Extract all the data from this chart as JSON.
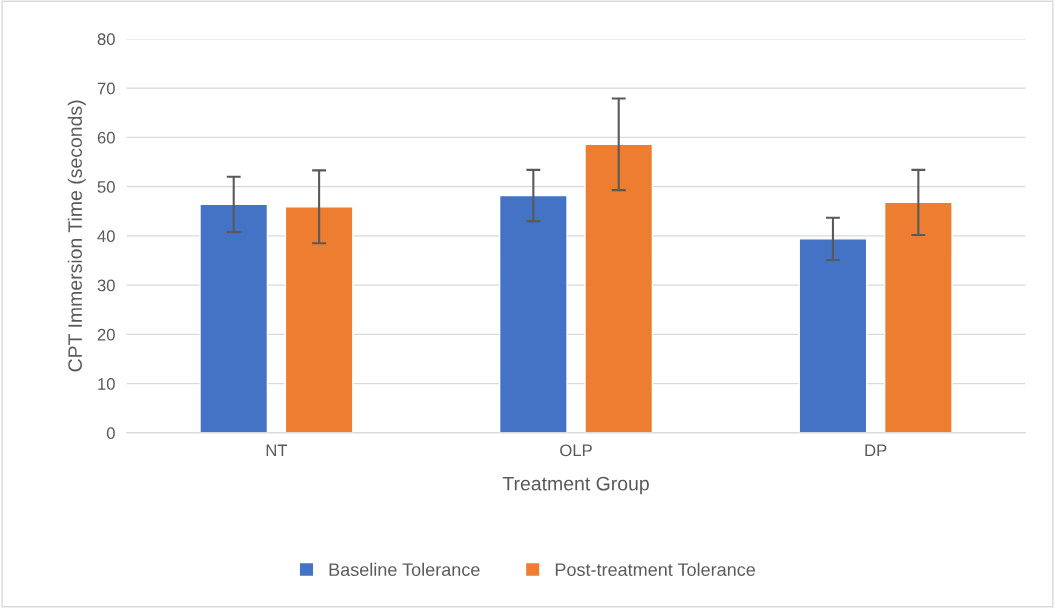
{
  "chart_data": {
    "type": "bar",
    "xlabel": "Treatment Group",
    "ylabel": "CPT Immersion Time (seconds)",
    "categories": [
      "NT",
      "OLP",
      "DP"
    ],
    "series": [
      {
        "name": "Baseline Tolerance",
        "color": "#4472c4",
        "values": [
          46.4,
          48.2,
          39.4
        ],
        "errors": [
          5.6,
          5.2,
          4.3
        ]
      },
      {
        "name": "Post-treatment Tolerance",
        "color": "#ed7d31",
        "values": [
          45.9,
          58.6,
          46.8
        ],
        "errors": [
          7.4,
          9.3,
          6.6
        ]
      }
    ],
    "ylim": [
      0,
      80
    ],
    "yticks": [
      0,
      10,
      20,
      30,
      40,
      50,
      60,
      70,
      80
    ],
    "grid": "y",
    "legend": "bottom"
  }
}
